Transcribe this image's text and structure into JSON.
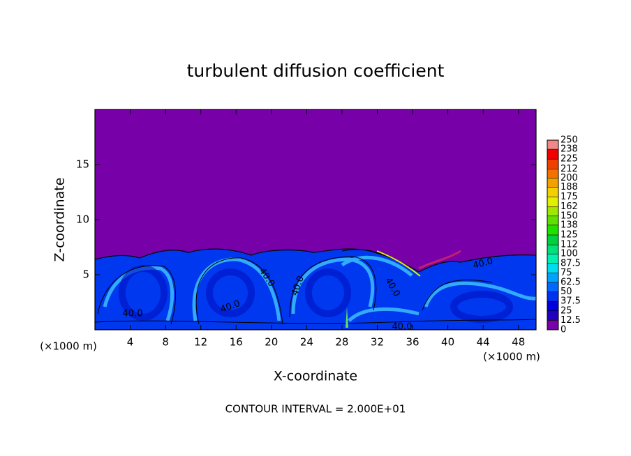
{
  "chart_data": {
    "type": "contour",
    "title": "turbulent diffusion coefficient",
    "x_label": "X-coordinate",
    "y_label": "Z-coordinate",
    "x_unit": "(×1000 m)",
    "xlim": [
      0,
      50
    ],
    "xticks": [
      4,
      8,
      12,
      16,
      20,
      24,
      28,
      32,
      36,
      40,
      44,
      48
    ],
    "ylim": [
      0,
      20
    ],
    "yticks": [
      5,
      10,
      15
    ],
    "colorbar": {
      "levels": [
        0,
        12.5,
        25,
        37.5,
        50,
        62.5,
        75,
        87.5,
        100,
        112,
        125,
        138,
        150,
        162,
        175,
        188,
        200,
        212,
        225,
        238,
        250
      ],
      "colors": [
        "#7800a8",
        "#2200c0",
        "#0000dc",
        "#0030f0",
        "#0068ff",
        "#00a4ff",
        "#00dcf0",
        "#00f0b0",
        "#00e078",
        "#00d040",
        "#20e000",
        "#60e000",
        "#a0e800",
        "#e0f000",
        "#f4d000",
        "#f4a000",
        "#f47000",
        "#f04000",
        "#f00000",
        "#f08888"
      ]
    },
    "contour_labels": [
      "40.0",
      "40.0",
      "40.0",
      "40.0",
      "40.0",
      "40.0",
      "40.0"
    ],
    "annotation": "CONTOUR INTERVAL = 2.000E+01"
  }
}
